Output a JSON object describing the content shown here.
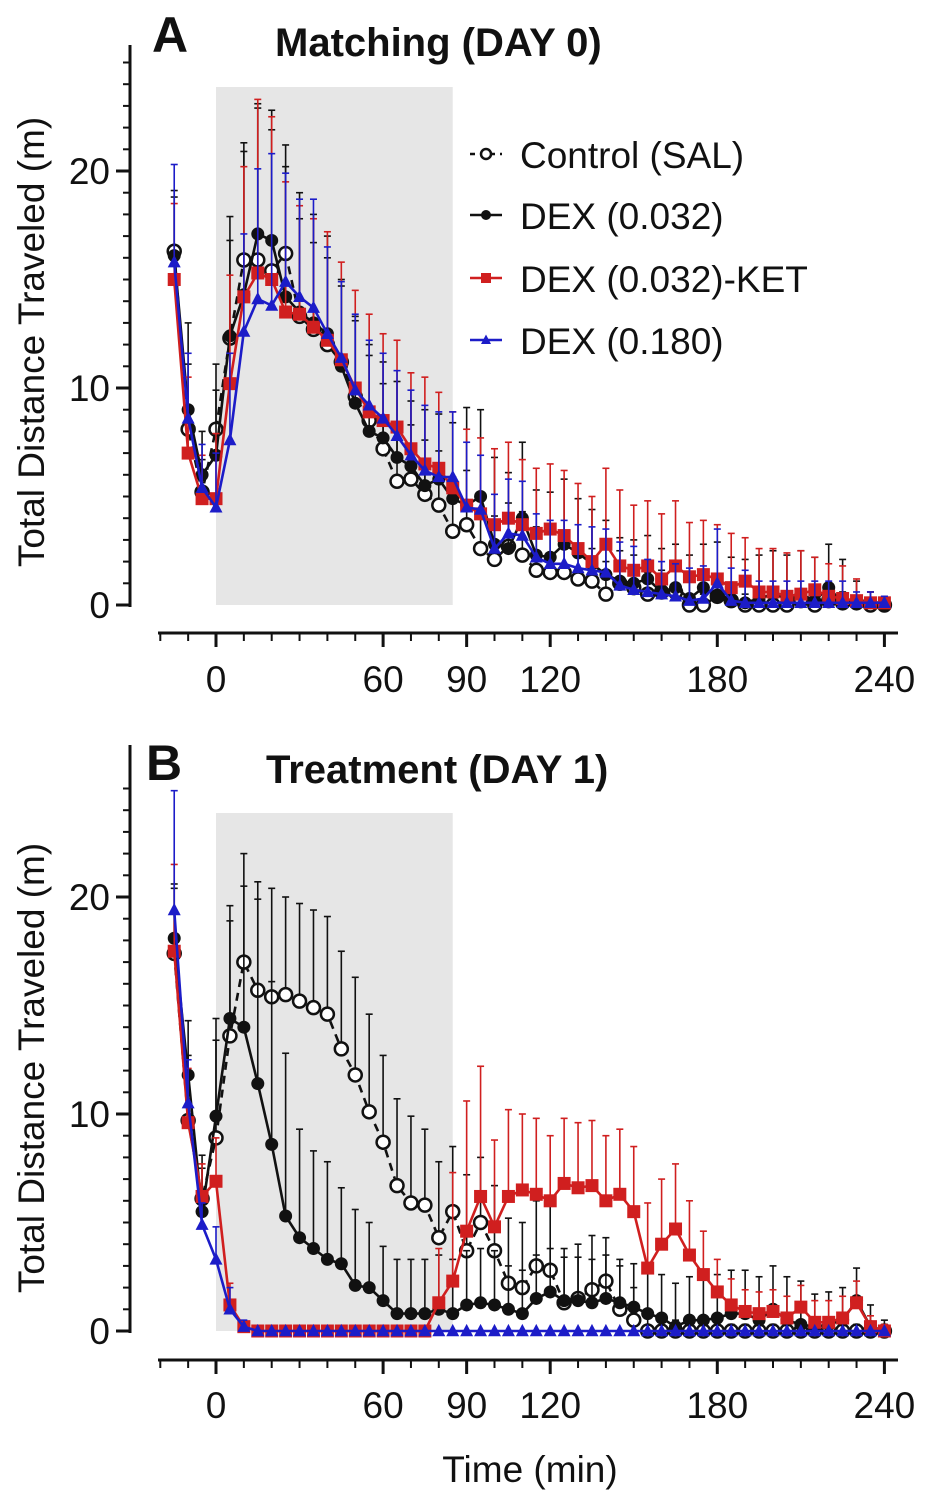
{
  "chart_data": [
    {
      "type": "line",
      "panel_letter": "A",
      "title": "Matching  (DAY 0)",
      "xlabel": "",
      "ylabel": "Total Distance Traveled (m)",
      "xlim": [
        -20,
        244
      ],
      "ylim": [
        0,
        25
      ],
      "x_ticks": [
        0,
        60,
        90,
        120,
        180,
        240
      ],
      "y_ticks": [
        0,
        10,
        20
      ],
      "shaded_region_x": [
        0,
        85
      ],
      "grid": false,
      "legend_position": "top-right",
      "x": [
        -15,
        -10,
        -5,
        0,
        5,
        10,
        15,
        20,
        25,
        30,
        35,
        40,
        45,
        50,
        55,
        60,
        65,
        70,
        75,
        80,
        85,
        90,
        95,
        100,
        105,
        110,
        115,
        120,
        125,
        130,
        135,
        140,
        145,
        150,
        155,
        160,
        165,
        170,
        175,
        180,
        185,
        190,
        195,
        200,
        205,
        210,
        215,
        220,
        225,
        230,
        235,
        240
      ],
      "series": [
        {
          "name": "Control (SAL)",
          "color": "#111111",
          "marker": "open-circle",
          "dashed": true,
          "values": [
            16.3,
            8.1,
            5.2,
            8.1,
            12.3,
            15.9,
            15.9,
            15.4,
            16.2,
            13.3,
            12.7,
            12.0,
            11.2,
            9.6,
            8.5,
            7.2,
            5.7,
            5.8,
            5.1,
            4.6,
            3.4,
            3.7,
            2.6,
            2.1,
            2.7,
            2.3,
            1.6,
            1.5,
            1.5,
            1.2,
            1.1,
            0.5,
            1.0,
            0.8,
            0.5,
            0.6,
            0.6,
            0,
            0,
            0.4,
            0.2,
            0,
            0,
            0,
            0,
            0.2,
            0,
            0.2,
            0.1,
            0.1,
            0,
            0
          ],
          "error": [
            2.5,
            3.0,
            1.5,
            3.0,
            4.5,
            5.0,
            7.0,
            6.5,
            5.0,
            4.5,
            4.0,
            4.0,
            3.5,
            3.5,
            3.0,
            3.0,
            2.5,
            2.5,
            2.5,
            2.5,
            2.5,
            2.5,
            2.5,
            2.0,
            2.0,
            2.0,
            2.0,
            2.0,
            1.5,
            1.5,
            1.5,
            1.5,
            1.5,
            1.5,
            1.0,
            1.0,
            1.0,
            0.5,
            0.5,
            1.0,
            0.5,
            0.5,
            0.5,
            0.5,
            0.5,
            0.5,
            0.5,
            0.5,
            0.5,
            0.3,
            0.2,
            0.2
          ]
        },
        {
          "name": "DEX (0.032)",
          "color": "#111111",
          "marker": "filled-circle",
          "dashed": false,
          "values": [
            16.1,
            9.0,
            6.0,
            6.9,
            12.4,
            14.3,
            17.1,
            16.8,
            14.2,
            13.5,
            13.0,
            12.5,
            11.0,
            9.3,
            8.0,
            7.7,
            6.8,
            6.4,
            5.5,
            5.8,
            4.9,
            4.6,
            5.0,
            2.8,
            2.6,
            4.0,
            2.3,
            2.2,
            2.8,
            2.4,
            1.9,
            1.4,
            1.1,
            1.0,
            1.2,
            0.6,
            0.8,
            0.3,
            0.8,
            0.4,
            0.2,
            0.1,
            0.3,
            0.5,
            0.3,
            0.5,
            0.2,
            0.8,
            0.1,
            0.1,
            0.1,
            0
          ],
          "error": [
            3.0,
            4.0,
            2.0,
            3.0,
            5.5,
            7.0,
            6.0,
            6.0,
            6.0,
            5.5,
            5.0,
            4.5,
            4.0,
            4.0,
            4.0,
            3.5,
            3.5,
            3.0,
            3.5,
            3.0,
            3.5,
            4.5,
            4.0,
            4.0,
            3.5,
            3.5,
            3.0,
            3.0,
            3.0,
            2.5,
            2.5,
            2.5,
            2.0,
            2.0,
            2.0,
            2.0,
            2.0,
            2.0,
            2.0,
            2.5,
            2.0,
            2.0,
            2.0,
            2.0,
            2.0,
            2.0,
            2.0,
            2.0,
            2.0,
            1.0,
            0.5,
            0.3
          ]
        },
        {
          "name": "DEX (0.032)-KET",
          "color": "#d01f1f",
          "marker": "square",
          "dashed": false,
          "values": [
            15.0,
            7.0,
            4.9,
            4.9,
            10.2,
            14.2,
            15.3,
            15.0,
            13.5,
            13.4,
            12.8,
            12.2,
            11.3,
            10.0,
            8.9,
            8.5,
            8.2,
            7.2,
            6.5,
            6.3,
            5.4,
            4.6,
            4.2,
            3.7,
            4.0,
            3.7,
            3.3,
            3.5,
            3.2,
            2.6,
            2.0,
            2.8,
            1.8,
            1.6,
            1.8,
            1.2,
            1.8,
            1.3,
            1.4,
            1.2,
            0.8,
            1.1,
            0.6,
            0.6,
            0.4,
            0.5,
            0.7,
            0.4,
            0.3,
            0.2,
            0.1,
            0.1
          ],
          "error": [
            3.5,
            3.5,
            2.0,
            3.0,
            5.0,
            6.0,
            8.0,
            7.5,
            6.0,
            5.0,
            5.0,
            5.0,
            4.5,
            4.5,
            4.5,
            4.0,
            4.0,
            3.5,
            4.0,
            3.5,
            3.5,
            3.5,
            3.5,
            3.5,
            3.5,
            3.0,
            3.0,
            3.0,
            3.0,
            3.0,
            3.0,
            3.5,
            3.5,
            3.0,
            3.0,
            3.0,
            3.0,
            2.5,
            2.5,
            2.5,
            2.5,
            2.0,
            2.0,
            2.0,
            2.0,
            2.0,
            1.5,
            1.5,
            1.5,
            1.0,
            0.5,
            0.3
          ]
        },
        {
          "name": "DEX (0.180)",
          "color": "#1c1cc8",
          "marker": "triangle",
          "dashed": false,
          "values": [
            15.8,
            8.6,
            5.4,
            4.5,
            7.6,
            12.6,
            14.1,
            13.8,
            14.9,
            14.2,
            13.7,
            12.5,
            11.4,
            9.9,
            9.2,
            8.6,
            7.8,
            6.9,
            6.2,
            5.9,
            5.9,
            4.5,
            4.4,
            2.6,
            3.3,
            3.2,
            2.2,
            1.9,
            1.9,
            1.7,
            1.6,
            1.5,
            0.9,
            0.7,
            0.6,
            0.5,
            0.4,
            0.2,
            0.3,
            1.0,
            0.2,
            0.1,
            0.1,
            0.1,
            0.1,
            0.1,
            0.1,
            0.1,
            0.1,
            0.1,
            0.1,
            0.1
          ],
          "error": [
            4.5,
            3.0,
            2.0,
            2.5,
            4.0,
            4.5,
            6.0,
            7.0,
            5.0,
            4.5,
            5.0,
            4.0,
            3.5,
            3.5,
            3.0,
            3.0,
            3.0,
            3.0,
            3.0,
            3.0,
            3.0,
            3.0,
            2.5,
            2.5,
            2.5,
            2.5,
            2.0,
            2.0,
            2.0,
            2.0,
            2.0,
            2.0,
            2.0,
            2.0,
            1.5,
            1.5,
            1.5,
            1.5,
            1.5,
            2.5,
            1.5,
            1.5,
            1.0,
            1.0,
            1.0,
            1.0,
            1.0,
            1.0,
            1.0,
            0.5,
            0.5,
            0.3
          ]
        }
      ]
    },
    {
      "type": "line",
      "panel_letter": "B",
      "title": "Treatment  (DAY 1)",
      "xlabel": "Time (min)",
      "ylabel": "Total Distance Traveled (m)",
      "xlim": [
        -20,
        244
      ],
      "ylim": [
        0,
        25
      ],
      "x_ticks": [
        0,
        60,
        90,
        120,
        180,
        240
      ],
      "y_ticks": [
        0,
        10,
        20
      ],
      "shaded_region_x": [
        0,
        85
      ],
      "grid": false,
      "x": [
        -15,
        -10,
        -5,
        0,
        5,
        10,
        15,
        20,
        25,
        30,
        35,
        40,
        45,
        50,
        55,
        60,
        65,
        70,
        75,
        80,
        85,
        90,
        95,
        100,
        105,
        110,
        115,
        120,
        125,
        130,
        135,
        140,
        145,
        150,
        155,
        160,
        165,
        170,
        175,
        180,
        185,
        190,
        195,
        200,
        205,
        210,
        215,
        220,
        225,
        230,
        235,
        240
      ],
      "series": [
        {
          "name": "Control (SAL)",
          "color": "#111111",
          "marker": "open-circle",
          "dashed": true,
          "values": [
            17.4,
            9.7,
            6.1,
            8.9,
            13.6,
            17.0,
            15.7,
            15.4,
            15.5,
            15.2,
            14.9,
            14.6,
            13.0,
            11.8,
            10.1,
            8.7,
            6.7,
            5.9,
            5.8,
            4.3,
            5.5,
            3.7,
            5.0,
            3.7,
            2.2,
            2.0,
            3.0,
            2.8,
            1.3,
            1.5,
            1.9,
            2.3,
            1.0,
            0.5,
            0,
            0,
            0,
            0,
            0,
            0,
            0,
            0,
            0,
            0,
            0,
            0,
            0,
            0,
            0,
            0,
            0,
            0
          ],
          "error": [
            3.0,
            3.0,
            2.0,
            4.5,
            6.0,
            5.0,
            5.0,
            5.0,
            4.5,
            4.5,
            4.5,
            4.5,
            4.5,
            4.5,
            4.5,
            4.0,
            4.0,
            4.0,
            3.5,
            3.5,
            3.0,
            3.5,
            3.0,
            3.0,
            3.0,
            3.0,
            3.0,
            3.0,
            2.5,
            2.5,
            2.5,
            2.0,
            2.0,
            1.5,
            1.0,
            0.5,
            0.5,
            0.5,
            0.5,
            0.3,
            0.3,
            0.3,
            0.3,
            0.3,
            0.3,
            0.3,
            0.3,
            0.3,
            0.3,
            0.3,
            0.3,
            0.3
          ]
        },
        {
          "name": "DEX (0.032)",
          "color": "#111111",
          "marker": "filled-circle",
          "dashed": false,
          "values": [
            18.1,
            11.8,
            5.5,
            9.9,
            14.4,
            14.0,
            11.4,
            8.6,
            5.3,
            4.3,
            3.8,
            3.3,
            3.1,
            2.1,
            2.0,
            1.4,
            0.8,
            0.8,
            0.8,
            1.0,
            0.8,
            1.2,
            1.3,
            1.2,
            1.0,
            0.8,
            1.5,
            1.8,
            1.4,
            1.4,
            1.3,
            1.5,
            1.3,
            1.1,
            0.8,
            0.6,
            0.2,
            0.5,
            0.5,
            0.6,
            0.8,
            0.8,
            0.5,
            1.0,
            0.5,
            0.3,
            0.2,
            0.3,
            0.5,
            1.4,
            0.2,
            0
          ],
          "error": [
            2.5,
            2.5,
            2.0,
            4.5,
            4.5,
            6.5,
            8.5,
            7.5,
            7.5,
            5.0,
            4.5,
            4.5,
            3.5,
            3.5,
            3.0,
            2.5,
            2.5,
            2.5,
            2.5,
            2.5,
            2.5,
            2.5,
            2.5,
            2.5,
            2.0,
            2.0,
            2.0,
            2.0,
            2.0,
            2.0,
            2.0,
            2.0,
            2.0,
            2.0,
            2.0,
            2.0,
            2.0,
            2.0,
            2.0,
            2.0,
            2.0,
            2.0,
            2.0,
            2.0,
            2.0,
            2.0,
            1.5,
            1.5,
            1.5,
            1.5,
            1.0,
            0.5
          ]
        },
        {
          "name": "DEX (0.032)-KET",
          "color": "#d01f1f",
          "marker": "square",
          "dashed": false,
          "values": [
            17.5,
            9.6,
            6.2,
            6.9,
            1.2,
            0.2,
            0,
            0,
            0,
            0,
            0,
            0,
            0,
            0,
            0,
            0,
            0,
            0,
            0,
            1.3,
            2.3,
            4.6,
            6.2,
            4.8,
            6.2,
            6.5,
            6.3,
            6.0,
            6.8,
            6.6,
            6.7,
            6.0,
            6.3,
            5.5,
            2.9,
            4.0,
            4.7,
            3.5,
            2.6,
            1.8,
            1.2,
            0.9,
            0.8,
            0.9,
            0.6,
            1.1,
            0.4,
            0.4,
            0.6,
            1.3,
            0.2,
            0.0
          ],
          "error": [
            4.0,
            2.5,
            1.5,
            2.0,
            1.0,
            0.2,
            0,
            0,
            0,
            0,
            0,
            0,
            0,
            0,
            0,
            0,
            0,
            0,
            0,
            2.5,
            5.0,
            6.0,
            6.0,
            4.0,
            4.0,
            3.5,
            3.5,
            3.0,
            3.0,
            3.0,
            3.0,
            3.0,
            3.0,
            3.0,
            3.0,
            3.0,
            3.0,
            2.5,
            2.0,
            1.5,
            1.2,
            1.0,
            1.0,
            1.0,
            1.0,
            1.0,
            1.0,
            1.0,
            1.0,
            1.0,
            0.5,
            0.3
          ]
        },
        {
          "name": "DEX (0.180)",
          "color": "#1c1cc8",
          "marker": "triangle",
          "dashed": false,
          "values": [
            19.4,
            10.5,
            4.9,
            3.3,
            1.0,
            0.2,
            0,
            0,
            0,
            0,
            0,
            0,
            0,
            0,
            0,
            0,
            0,
            0,
            0,
            0,
            0,
            0,
            0,
            0,
            0,
            0,
            0,
            0,
            0,
            0,
            0,
            0,
            0,
            0,
            0,
            0,
            0,
            0,
            0,
            0,
            0,
            0,
            0,
            0,
            0,
            0,
            0,
            0,
            0,
            0,
            0,
            0
          ],
          "error": [
            5.5,
            2.0,
            1.0,
            1.5,
            1.0,
            0.3,
            0,
            0,
            0,
            0,
            0,
            0,
            0,
            0,
            0,
            0,
            0,
            0,
            0,
            0,
            0,
            0,
            0,
            0,
            0,
            0,
            0,
            0,
            0,
            0,
            0,
            0,
            0,
            0,
            0,
            0,
            0,
            0,
            0,
            0,
            0,
            0,
            0,
            0,
            0,
            0,
            0,
            0,
            0,
            0,
            0,
            0
          ]
        }
      ]
    }
  ]
}
